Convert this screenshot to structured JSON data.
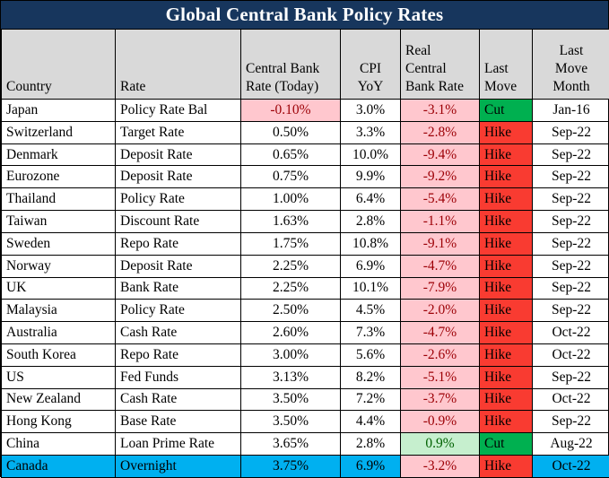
{
  "title": "Global Central Bank Policy Rates",
  "colors": {
    "title_bg": "#17365d",
    "title_text": "#ffffff",
    "header_bg": "#d9d9d9",
    "cell_bg": "#ffffff",
    "text": "#000000",
    "border": "#000000",
    "bad_bg": "#ffc7ce",
    "bad_text": "#9c0006",
    "good_bg": "#c6efce",
    "good_text": "#006100",
    "hike_bg": "#f93b31",
    "cut_bg": "#00b050",
    "highlight_bg": "#00b0f0"
  },
  "table": {
    "headers": [
      "Country",
      "Rate",
      "Central Bank\nRate (Today)",
      "CPI\nYoY",
      "Real\nCentral\nBank Rate",
      "Last\nMove",
      "Last\nMove\nMonth"
    ]
  },
  "chart_data": {
    "type": "table",
    "title": "Global Central Bank Policy Rates",
    "columns": [
      "Country",
      "Rate",
      "Central Bank Rate (Today)",
      "CPI YoY",
      "Real Central Bank Rate",
      "Last Move",
      "Last Move Month"
    ],
    "rows": [
      {
        "country": "Japan",
        "rate": "Policy Rate Bal",
        "cbr_today": "-0.10%",
        "cbr_style": "bad",
        "cpi_yoy": "3.0%",
        "real_rate": "-3.1%",
        "real_style": "bad",
        "last_move": "Cut",
        "move_style": "cut",
        "move_month": "Jan-16",
        "highlight": false
      },
      {
        "country": "Switzerland",
        "rate": "Target Rate",
        "cbr_today": "0.50%",
        "cbr_style": "",
        "cpi_yoy": "3.3%",
        "real_rate": "-2.8%",
        "real_style": "bad",
        "last_move": "Hike",
        "move_style": "hike",
        "move_month": "Sep-22",
        "highlight": false
      },
      {
        "country": "Denmark",
        "rate": "Deposit Rate",
        "cbr_today": "0.65%",
        "cbr_style": "",
        "cpi_yoy": "10.0%",
        "real_rate": "-9.4%",
        "real_style": "bad",
        "last_move": "Hike",
        "move_style": "hike",
        "move_month": "Sep-22",
        "highlight": false
      },
      {
        "country": "Eurozone",
        "rate": "Deposit Rate",
        "cbr_today": "0.75%",
        "cbr_style": "",
        "cpi_yoy": "9.9%",
        "real_rate": "-9.2%",
        "real_style": "bad",
        "last_move": "Hike",
        "move_style": "hike",
        "move_month": "Sep-22",
        "highlight": false
      },
      {
        "country": "Thailand",
        "rate": "Policy Rate",
        "cbr_today": "1.00%",
        "cbr_style": "",
        "cpi_yoy": "6.4%",
        "real_rate": "-5.4%",
        "real_style": "bad",
        "last_move": "Hike",
        "move_style": "hike",
        "move_month": "Sep-22",
        "highlight": false
      },
      {
        "country": "Taiwan",
        "rate": "Discount Rate",
        "cbr_today": "1.63%",
        "cbr_style": "",
        "cpi_yoy": "2.8%",
        "real_rate": "-1.1%",
        "real_style": "bad",
        "last_move": "Hike",
        "move_style": "hike",
        "move_month": "Sep-22",
        "highlight": false
      },
      {
        "country": "Sweden",
        "rate": "Repo Rate",
        "cbr_today": "1.75%",
        "cbr_style": "",
        "cpi_yoy": "10.8%",
        "real_rate": "-9.1%",
        "real_style": "bad",
        "last_move": "Hike",
        "move_style": "hike",
        "move_month": "Sep-22",
        "highlight": false
      },
      {
        "country": "Norway",
        "rate": "Deposit Rate",
        "cbr_today": "2.25%",
        "cbr_style": "",
        "cpi_yoy": "6.9%",
        "real_rate": "-4.7%",
        "real_style": "bad",
        "last_move": "Hike",
        "move_style": "hike",
        "move_month": "Sep-22",
        "highlight": false
      },
      {
        "country": "UK",
        "rate": "Bank Rate",
        "cbr_today": "2.25%",
        "cbr_style": "",
        "cpi_yoy": "10.1%",
        "real_rate": "-7.9%",
        "real_style": "bad",
        "last_move": "Hike",
        "move_style": "hike",
        "move_month": "Sep-22",
        "highlight": false
      },
      {
        "country": "Malaysia",
        "rate": "Policy Rate",
        "cbr_today": "2.50%",
        "cbr_style": "",
        "cpi_yoy": "4.5%",
        "real_rate": "-2.0%",
        "real_style": "bad",
        "last_move": "Hike",
        "move_style": "hike",
        "move_month": "Sep-22",
        "highlight": false
      },
      {
        "country": "Australia",
        "rate": "Cash Rate",
        "cbr_today": "2.60%",
        "cbr_style": "",
        "cpi_yoy": "7.3%",
        "real_rate": "-4.7%",
        "real_style": "bad",
        "last_move": "Hike",
        "move_style": "hike",
        "move_month": "Oct-22",
        "highlight": false
      },
      {
        "country": "South Korea",
        "rate": "Repo Rate",
        "cbr_today": "3.00%",
        "cbr_style": "",
        "cpi_yoy": "5.6%",
        "real_rate": "-2.6%",
        "real_style": "bad",
        "last_move": "Hike",
        "move_style": "hike",
        "move_month": "Oct-22",
        "highlight": false
      },
      {
        "country": "US",
        "rate": "Fed Funds",
        "cbr_today": "3.13%",
        "cbr_style": "",
        "cpi_yoy": "8.2%",
        "real_rate": "-5.1%",
        "real_style": "bad",
        "last_move": "Hike",
        "move_style": "hike",
        "move_month": "Sep-22",
        "highlight": false
      },
      {
        "country": "New Zealand",
        "rate": "Cash Rate",
        "cbr_today": "3.50%",
        "cbr_style": "",
        "cpi_yoy": "7.2%",
        "real_rate": "-3.7%",
        "real_style": "bad",
        "last_move": "Hike",
        "move_style": "hike",
        "move_month": "Oct-22",
        "highlight": false
      },
      {
        "country": "Hong Kong",
        "rate": "Base Rate",
        "cbr_today": "3.50%",
        "cbr_style": "",
        "cpi_yoy": "4.4%",
        "real_rate": "-0.9%",
        "real_style": "bad",
        "last_move": "Hike",
        "move_style": "hike",
        "move_month": "Sep-22",
        "highlight": false
      },
      {
        "country": "China",
        "rate": "Loan Prime Rate",
        "cbr_today": "3.65%",
        "cbr_style": "",
        "cpi_yoy": "2.8%",
        "real_rate": "0.9%",
        "real_style": "good",
        "last_move": "Cut",
        "move_style": "cut",
        "move_month": "Aug-22",
        "highlight": false
      },
      {
        "country": "Canada",
        "rate": "Overnight",
        "cbr_today": "3.75%",
        "cbr_style": "",
        "cpi_yoy": "6.9%",
        "real_rate": "-3.2%",
        "real_style": "bad",
        "last_move": "Hike",
        "move_style": "hike",
        "move_month": "Oct-22",
        "highlight": true
      }
    ]
  }
}
